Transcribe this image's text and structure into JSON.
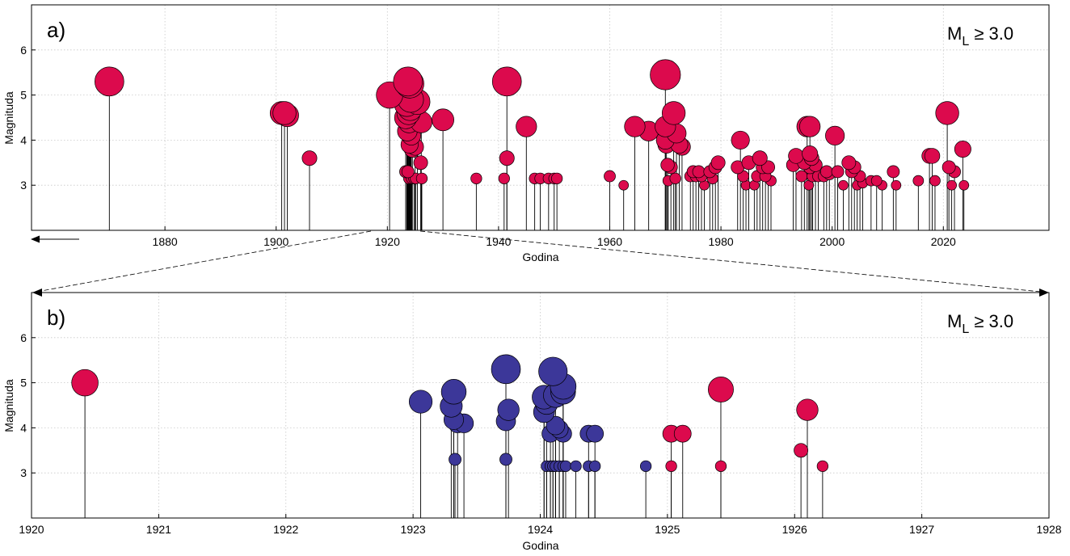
{
  "figure": {
    "colors": {
      "red": "#dc0a4d",
      "blue": "#3c3799",
      "frame": "#000000"
    }
  },
  "chart_data": [
    {
      "type": "scatter",
      "panel": "a)",
      "annotation_main": "M",
      "annotation_sub": "L",
      "annotation_rest": " ≥ 3.0",
      "xlabel": "Godina",
      "ylabel": "Magnituda",
      "xlim": [
        1856,
        2039
      ],
      "ylim": [
        2,
        7
      ],
      "xticks": [
        "1880",
        "1900",
        "1920",
        "1940",
        "1960",
        "1980",
        "2000",
        "2020"
      ],
      "yticks": [
        "3",
        "4",
        "5",
        "6"
      ],
      "grid": true,
      "style": "stem",
      "arrow_left": true,
      "series": [
        {
          "color": "#dc0a4d",
          "points": [
            [
              1870,
              5.3
            ],
            [
              1901,
              4.6
            ],
            [
              1901.5,
              4.6
            ],
            [
              1902,
              4.55
            ],
            [
              1906,
              3.6
            ],
            [
              1920.4,
              5.0
            ],
            [
              1923.7,
              5.3
            ],
            [
              1924.0,
              5.25
            ],
            [
              1924.2,
              4.9
            ],
            [
              1923.5,
              4.8
            ],
            [
              1925.4,
              4.85
            ],
            [
              1923.8,
              4.6
            ],
            [
              1924.1,
              4.7
            ],
            [
              1923.3,
              4.5
            ],
            [
              1923.9,
              4.4
            ],
            [
              1926.1,
              4.4
            ],
            [
              1923.6,
              4.2
            ],
            [
              1924.3,
              4.1
            ],
            [
              1924.0,
              3.9
            ],
            [
              1925.0,
              3.85
            ],
            [
              1924.5,
              3.8
            ],
            [
              1923.3,
              3.3
            ],
            [
              1926.0,
              3.5
            ],
            [
              1923.7,
              3.3
            ],
            [
              1923.9,
              3.15
            ],
            [
              1924.4,
              3.15
            ],
            [
              1924.8,
              3.15
            ],
            [
              1925.1,
              3.15
            ],
            [
              1926.2,
              3.15
            ],
            [
              1930,
              4.45
            ],
            [
              1936,
              3.15
            ],
            [
              1941,
              3.15
            ],
            [
              1941.5,
              5.3
            ],
            [
              1941.5,
              3.6
            ],
            [
              1945,
              4.3
            ],
            [
              1946.5,
              3.15
            ],
            [
              1947.5,
              3.15
            ],
            [
              1949,
              3.15
            ],
            [
              1950,
              3.15
            ],
            [
              1950.5,
              3.15
            ],
            [
              1960,
              3.2
            ],
            [
              1962.5,
              3.0
            ],
            [
              1964.5,
              4.3
            ],
            [
              1967,
              4.2
            ],
            [
              1970,
              5.45
            ],
            [
              1970,
              4.3
            ],
            [
              1970,
              4.0
            ],
            [
              1970.2,
              3.9
            ],
            [
              1970.4,
              3.45
            ],
            [
              1970.5,
              3.1
            ],
            [
              1971,
              3.4
            ],
            [
              1971.5,
              4.6
            ],
            [
              1972,
              4.15
            ],
            [
              1972.5,
              3.9
            ],
            [
              1973,
              3.85
            ],
            [
              1971.8,
              3.15
            ],
            [
              1974.5,
              3.2
            ],
            [
              1975,
              3.3
            ],
            [
              1975.5,
              3.2
            ],
            [
              1976,
              3.3
            ],
            [
              1976.5,
              3.2
            ],
            [
              1977,
              3.0
            ],
            [
              1978,
              3.3
            ],
            [
              1978.5,
              3.15
            ],
            [
              1979,
              3.4
            ],
            [
              1979.5,
              3.5
            ],
            [
              1983.5,
              4.0
            ],
            [
              1983,
              3.4
            ],
            [
              1984,
              3.2
            ],
            [
              1984.5,
              3.0
            ],
            [
              1985,
              3.5
            ],
            [
              1986,
              3.0
            ],
            [
              1986.5,
              3.2
            ],
            [
              1987,
              3.6
            ],
            [
              1987.5,
              3.4
            ],
            [
              1988,
              3.2
            ],
            [
              1988.5,
              3.4
            ],
            [
              1989,
              3.1
            ],
            [
              1993,
              3.45
            ],
            [
              1993.5,
              3.65
            ],
            [
              1994.5,
              3.2
            ],
            [
              1995,
              3.5
            ],
            [
              1995.5,
              4.3
            ],
            [
              1996,
              4.3
            ],
            [
              1996,
              3.7
            ],
            [
              1996.3,
              3.6
            ],
            [
              1996,
              3.4
            ],
            [
              1996.5,
              3.2
            ],
            [
              1995.8,
              3.0
            ],
            [
              1997,
              3.45
            ],
            [
              1997.5,
              3.2
            ],
            [
              1998.5,
              3.2
            ],
            [
              1999,
              3.3
            ],
            [
              1999.5,
              3.25
            ],
            [
              2000.5,
              4.1
            ],
            [
              2001,
              3.3
            ],
            [
              2002,
              3.0
            ],
            [
              2003,
              3.5
            ],
            [
              2003.5,
              3.3
            ],
            [
              2004,
              3.4
            ],
            [
              2004.5,
              3.0
            ],
            [
              2005,
              3.2
            ],
            [
              2005.5,
              3.05
            ],
            [
              2007,
              3.1
            ],
            [
              2008,
              3.1
            ],
            [
              2009,
              3.0
            ],
            [
              2011,
              3.3
            ],
            [
              2011.5,
              3.0
            ],
            [
              2015.5,
              3.1
            ],
            [
              2017.5,
              3.65
            ],
            [
              2018,
              3.65
            ],
            [
              2018.5,
              3.1
            ],
            [
              2020.7,
              4.6
            ],
            [
              2021,
              3.4
            ],
            [
              2021.5,
              3.0
            ],
            [
              2022,
              3.3
            ],
            [
              2023.5,
              3.8
            ],
            [
              2023.7,
              3.0
            ]
          ]
        }
      ]
    },
    {
      "type": "scatter",
      "panel": "b)",
      "annotation_main": "M",
      "annotation_sub": "L",
      "annotation_rest": " ≥ 3.0",
      "xlabel": "Godina",
      "ylabel": "Magnituda",
      "xlim": [
        1920,
        1928
      ],
      "ylim": [
        2,
        7
      ],
      "xticks": [
        "1920",
        "1921",
        "1922",
        "1923",
        "1924",
        "1925",
        "1926",
        "1927",
        "1928"
      ],
      "yticks": [
        "3",
        "4",
        "5",
        "6"
      ],
      "grid": true,
      "style": "stem",
      "series": [
        {
          "color": "#dc0a4d",
          "points": [
            [
              1920.42,
              5.0
            ],
            [
              1925.03,
              3.87
            ],
            [
              1925.12,
              3.87
            ],
            [
              1925.03,
              3.15
            ],
            [
              1925.42,
              4.85
            ],
            [
              1925.42,
              3.15
            ],
            [
              1926.05,
              3.5
            ],
            [
              1926.1,
              4.4
            ],
            [
              1926.22,
              3.15
            ]
          ]
        },
        {
          "color": "#3c3799",
          "points": [
            [
              1923.06,
              4.58
            ],
            [
              1923.32,
              4.8
            ],
            [
              1923.3,
              4.48
            ],
            [
              1923.32,
              4.18
            ],
            [
              1923.35,
              4.1
            ],
            [
              1923.4,
              4.1
            ],
            [
              1923.33,
              3.3
            ],
            [
              1923.73,
              5.3
            ],
            [
              1923.75,
              4.4
            ],
            [
              1923.73,
              4.15
            ],
            [
              1923.73,
              3.3
            ],
            [
              1924.03,
              4.68
            ],
            [
              1924.05,
              4.55
            ],
            [
              1924.03,
              4.35
            ],
            [
              1924.08,
              3.87
            ],
            [
              1924.1,
              5.25
            ],
            [
              1924.12,
              4.72
            ],
            [
              1924.12,
              4.05
            ],
            [
              1924.15,
              3.97
            ],
            [
              1924.18,
              4.92
            ],
            [
              1924.18,
              4.8
            ],
            [
              1924.18,
              3.87
            ],
            [
              1924.38,
              3.87
            ],
            [
              1924.43,
              3.87
            ],
            [
              1924.05,
              3.15
            ],
            [
              1924.08,
              3.15
            ],
            [
              1924.1,
              3.15
            ],
            [
              1924.12,
              3.15
            ],
            [
              1924.15,
              3.15
            ],
            [
              1924.18,
              3.15
            ],
            [
              1924.2,
              3.15
            ],
            [
              1924.28,
              3.15
            ],
            [
              1924.38,
              3.15
            ],
            [
              1924.43,
              3.15
            ],
            [
              1924.83,
              3.15
            ]
          ]
        }
      ]
    }
  ]
}
